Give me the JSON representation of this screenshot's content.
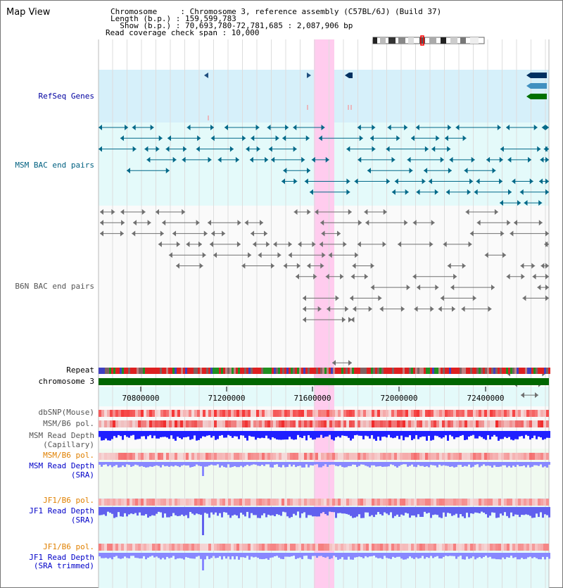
{
  "header": {
    "title": "Map View",
    "line1": "Chromosome     : Chromosome 3, reference assembly (C57BL/6J) (Build 37)",
    "line2": "Length (b.p.) : 159,599,783",
    "line3": "  Show (b.p.) : 70,693,780-72,781,685 : 2,087,906 bp",
    "line4": "Read coverage check span : 10,000"
  },
  "tracks": {
    "refseq": "RefSeq Genes",
    "msm_bac": "MSM BAC end pairs",
    "b6n_bac": "B6N BAC end pairs",
    "repeat": "Repeat",
    "chromosome": "chromosome 3",
    "dbsnp": "dbSNP(Mouse)",
    "msm_b6_pol_1": "MSM/B6 pol.",
    "msm_read_depth_cap_1": "MSM Read Depth",
    "msm_read_depth_cap_2": "(Capillary)",
    "msm_b6_pol_2": "MSM/B6 pol.",
    "msm_read_depth_sra_1": "MSM Read Depth",
    "msm_read_depth_sra_2": "(SRA)",
    "jf1_b6_pol_1": "JF1/B6 pol.",
    "jf1_read_depth_sra_1": "JF1 Read Depth",
    "jf1_read_depth_sra_2": "(SRA)",
    "jf1_b6_pol_2": "JF1/B6 pol.",
    "jf1_read_depth_trim_1": "JF1 Read Depth",
    "jf1_read_depth_trim_2": "(SRA trimmed)"
  },
  "axis": {
    "ticks": [
      "70800000",
      "71200000",
      "71600000",
      "72000000",
      "72400000"
    ]
  },
  "colors": {
    "highlight": "#ffccee",
    "refseq_bg": "#d6f0fa",
    "msm_bac_bg": "#e4fafa",
    "chromosome": "#006600",
    "msm_feature": "#006888",
    "b6n_feature": "#707070",
    "depth_blue": "#2020ff",
    "depth_light": "#8888ff"
  }
}
